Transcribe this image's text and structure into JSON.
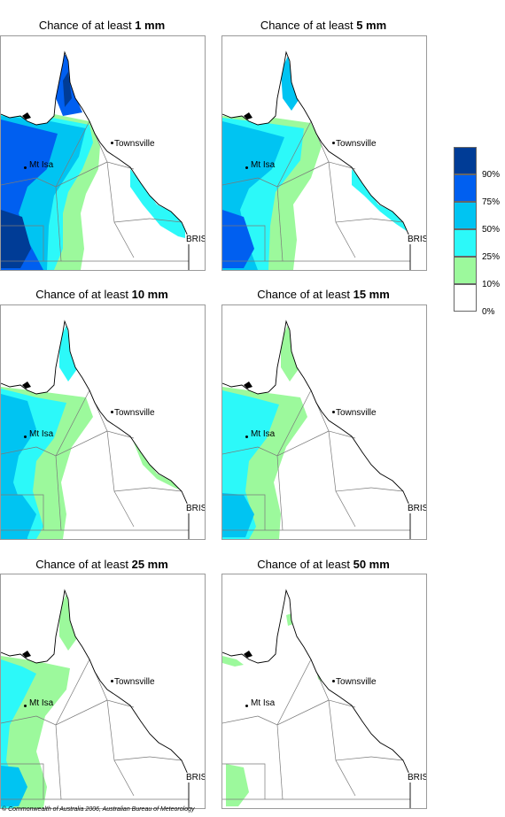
{
  "panels": [
    {
      "prefix": "Chance of at least ",
      "amount": "1 mm",
      "level": 1
    },
    {
      "prefix": "Chance of at least ",
      "amount": "5 mm",
      "level": 2
    },
    {
      "prefix": "Chance of at least ",
      "amount": "10 mm",
      "level": 3
    },
    {
      "prefix": "Chance of at least ",
      "amount": "15 mm",
      "level": 4
    },
    {
      "prefix": "Chance of at least ",
      "amount": "25 mm",
      "level": 5
    },
    {
      "prefix": "Chance of at least ",
      "amount": "50 mm",
      "level": 6
    }
  ],
  "places": {
    "townsville": "Townsville",
    "mt_isa": "Mt Isa",
    "brisbane": "BRIS"
  },
  "legend": {
    "ticks": [
      "90%",
      "75%",
      "50%",
      "25%",
      "10%",
      "0%"
    ],
    "colors": [
      "#003c96",
      "#005ff0",
      "#00c4f2",
      "#2cf9f9",
      "#9cf99c",
      "#ffffff"
    ]
  },
  "copyright": "© Commonwealth of Australia 2006, Australian Bureau of Meteorology"
}
